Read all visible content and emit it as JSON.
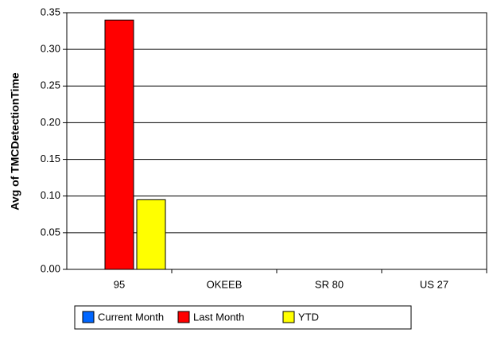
{
  "chart_data": {
    "type": "bar",
    "y_label": "Avg of TMCDetectionTime",
    "categories": [
      "95",
      "OKEEB",
      "SR 80",
      "US 27"
    ],
    "series": [
      {
        "name": "Current Month",
        "color": "#0066ff",
        "values": [
          null,
          null,
          null,
          null
        ]
      },
      {
        "name": "Last Month",
        "color": "#ff0000",
        "values": [
          0.34,
          null,
          null,
          null
        ]
      },
      {
        "name": "YTD",
        "color": "#ffff00",
        "values": [
          0.095,
          null,
          null,
          null
        ]
      }
    ],
    "ylim": [
      0,
      0.35
    ],
    "yticks": [
      {
        "value": 0,
        "label": "0.00"
      },
      0.05,
      {
        "value": 0.1,
        "label": "0.10"
      },
      0.15,
      {
        "value": 0.2,
        "label": "0.20"
      },
      0.25,
      {
        "value": 0.3,
        "label": "0.30"
      },
      0.35
    ],
    "grid": true,
    "legend": "bottom"
  }
}
